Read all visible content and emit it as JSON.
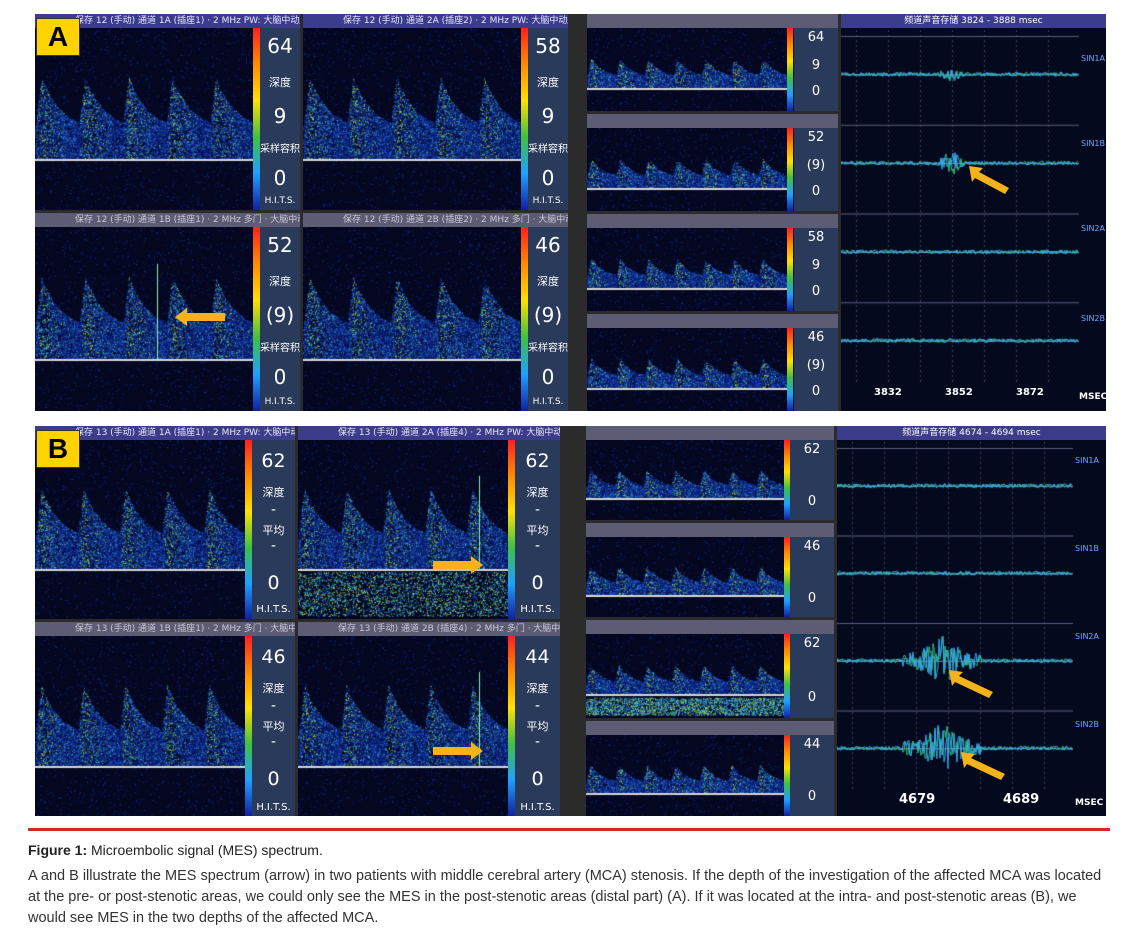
{
  "figure": {
    "panel_a_label": "A",
    "panel_b_label": "B",
    "a_panels": [
      {
        "title": "保存 12 (手动) 通道 1A (插座1) · 2 MHz PW: 大脑中动脉 右",
        "depth": "64",
        "gate": "9",
        "hits": "0",
        "label_depth": "深度",
        "label_gate": "采样容积",
        "label_hits": "H.I.T.S."
      },
      {
        "title": "保存 12 (手动) 通道 2A (插座2) · 2 MHz PW: 大脑中动脉 左",
        "depth": "58",
        "gate": "9",
        "hits": "0",
        "label_depth": "深度",
        "label_gate": "采样容积",
        "label_hits": "H.I.T.S."
      },
      {
        "title": "保存 12 (手动) 通道 1B (插座1) · 2 MHz 多门 · 大脑中动脉 右",
        "depth": "52",
        "gate": "(9)",
        "hits": "0",
        "label_depth": "深度",
        "label_gate": "采样容积",
        "label_hits": "H.I.T.S."
      },
      {
        "title": "保存 12 (手动) 通道 2B (插座2) · 2 MHz 多门 · 大脑中动脉 左",
        "depth": "46",
        "gate": "(9)",
        "hits": "0",
        "label_depth": "深度",
        "label_gate": "采样容积",
        "label_hits": "H.I.T.S."
      }
    ],
    "a_small_panels": [
      {
        "depth": "64",
        "gate": "9",
        "hits": "0"
      },
      {
        "depth": "52",
        "gate": "(9)",
        "hits": "0"
      },
      {
        "depth": "58",
        "gate": "9",
        "hits": "0"
      },
      {
        "depth": "46",
        "gate": "(9)",
        "hits": "0"
      }
    ],
    "a_trace": {
      "header": "频道声音存储 3824 - 3888 msec",
      "channels": [
        "SIN1A",
        "SIN1B",
        "SIN2A",
        "SIN2B"
      ],
      "xticks": [
        "3832",
        "3852",
        "3872"
      ],
      "unit": "MSEC"
    },
    "b_panels": [
      {
        "title": "保存 13 (手动) 通道 1A (插座1) · 2 MHz PW: 大脑中动脉 右",
        "depth": "62",
        "gate": "-",
        "avg": "平均",
        "hits": "0",
        "label_depth": "深度",
        "label_hits": "H.I.T.S."
      },
      {
        "title": "保存 13 (手动) 通道 2A (插座4) · 2 MHz PW: 大脑中动脉 左",
        "depth": "62",
        "gate": "-",
        "avg": "平均",
        "hits": "0",
        "label_depth": "深度",
        "label_hits": "H.I.T.S."
      },
      {
        "title": "保存 13 (手动) 通道 1B (插座1) · 2 MHz 多门 · 大脑中动脉 右",
        "depth": "46",
        "gate": "-",
        "avg": "平均",
        "hits": "0",
        "label_depth": "深度",
        "label_hits": "H.I.T.S."
      },
      {
        "title": "保存 13 (手动) 通道 2B (插座4) · 2 MHz 多门 · 大脑中动脉 左",
        "depth": "44",
        "gate": "-",
        "avg": "平均",
        "hits": "0",
        "label_depth": "深度",
        "label_hits": "H.I.T.S."
      }
    ],
    "b_small_panels": [
      {
        "depth": "62",
        "hits": "0"
      },
      {
        "depth": "46",
        "hits": "0"
      },
      {
        "depth": "62",
        "hits": "0"
      },
      {
        "depth": "44",
        "hits": "0"
      }
    ],
    "b_trace": {
      "header": "频道声音存储 4674 - 4694 msec",
      "channels": [
        "SIN1A",
        "SIN1B",
        "SIN2A",
        "SIN2B"
      ],
      "xticks": [
        "4679",
        "4689"
      ],
      "unit": "MSEC"
    }
  },
  "caption": {
    "label": "Figure 1:",
    "title": "Microembolic signal (MES) spectrum.",
    "text": "A and B illustrate the MES spectrum (arrow) in two patients with middle cerebral artery (MCA) stenosis. If the depth of the investigation of the affected MCA was located at the pre- or post-stenotic areas, we could only see the MES in the post-stenotic areas (distal part) (A). If it was located at the intra- and post-stenotic areas (B), we would see MES in the two depths of the affected MCA."
  },
  "colors": {
    "accent": "#d9262b",
    "arrow": "#f6b21a",
    "label_bg": "#ffd200"
  }
}
